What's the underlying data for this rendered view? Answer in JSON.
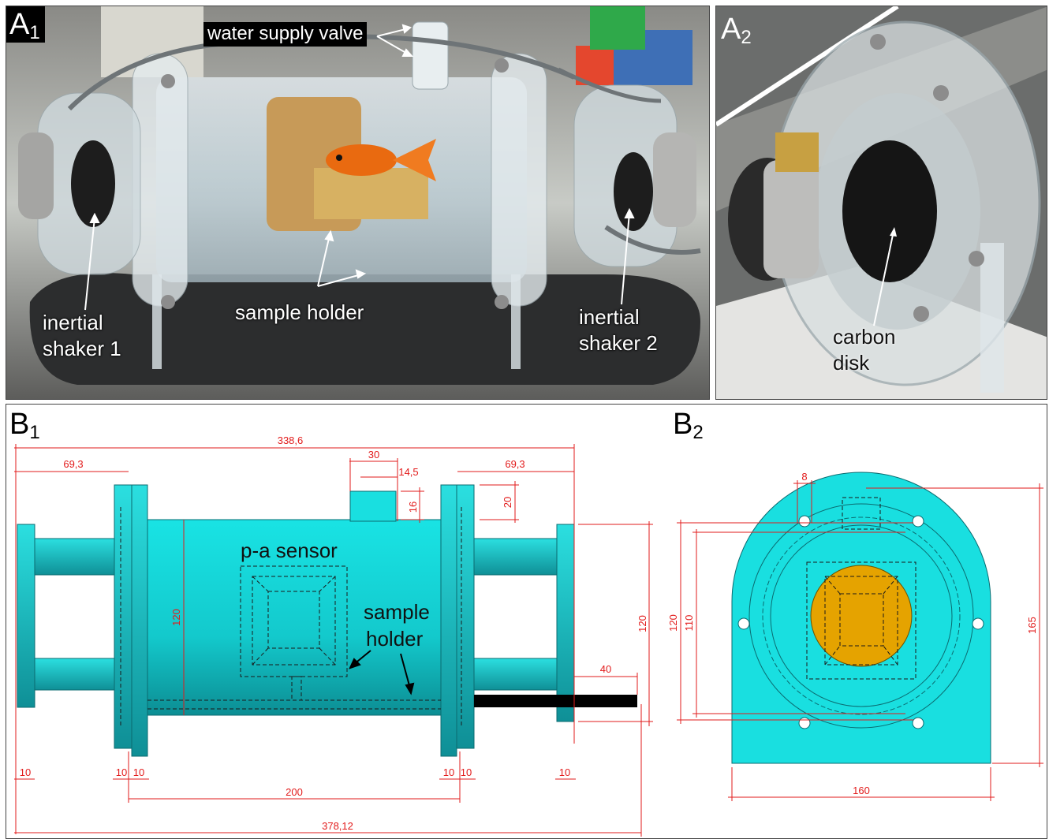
{
  "panels": {
    "a1": {
      "letter": "A",
      "sub": "1",
      "labels": {
        "valve": "water supply valve",
        "shaker1_l1": "inertial",
        "shaker1_l2": "shaker 1",
        "holder": "sample holder",
        "shaker2_l1": "inertial",
        "shaker2_l2": "shaker 2"
      }
    },
    "a2": {
      "letter": "A",
      "sub": "2",
      "labels": {
        "disk_l1": "carbon",
        "disk_l2": "disk"
      }
    },
    "b1": {
      "letter": "B",
      "sub": "1",
      "labels": {
        "sensor": "p-a sensor",
        "holder_l1": "sample",
        "holder_l2": "holder"
      },
      "dims": {
        "total_top": "338,6",
        "left_flange": "69,3",
        "right_flange": "69,3",
        "valve_w": "30",
        "valve_half": "14,5",
        "valve_h": "16",
        "valve_h2": "20",
        "body_h": "120",
        "right_h": "120",
        "rod": "40",
        "t1": "10",
        "t2": "10",
        "t3": "10",
        "t4": "10",
        "t5": "10",
        "t6": "10",
        "body_len": "200",
        "total_bottom": "378,12"
      }
    },
    "b2": {
      "letter": "B",
      "sub": "2",
      "dims": {
        "hole": "8",
        "d120": "120",
        "d110": "110",
        "h165": "165",
        "w160": "160"
      }
    }
  },
  "colors": {
    "dim": "#e21b1b",
    "body": "#19dfe0",
    "disk": "#e5a300"
  }
}
